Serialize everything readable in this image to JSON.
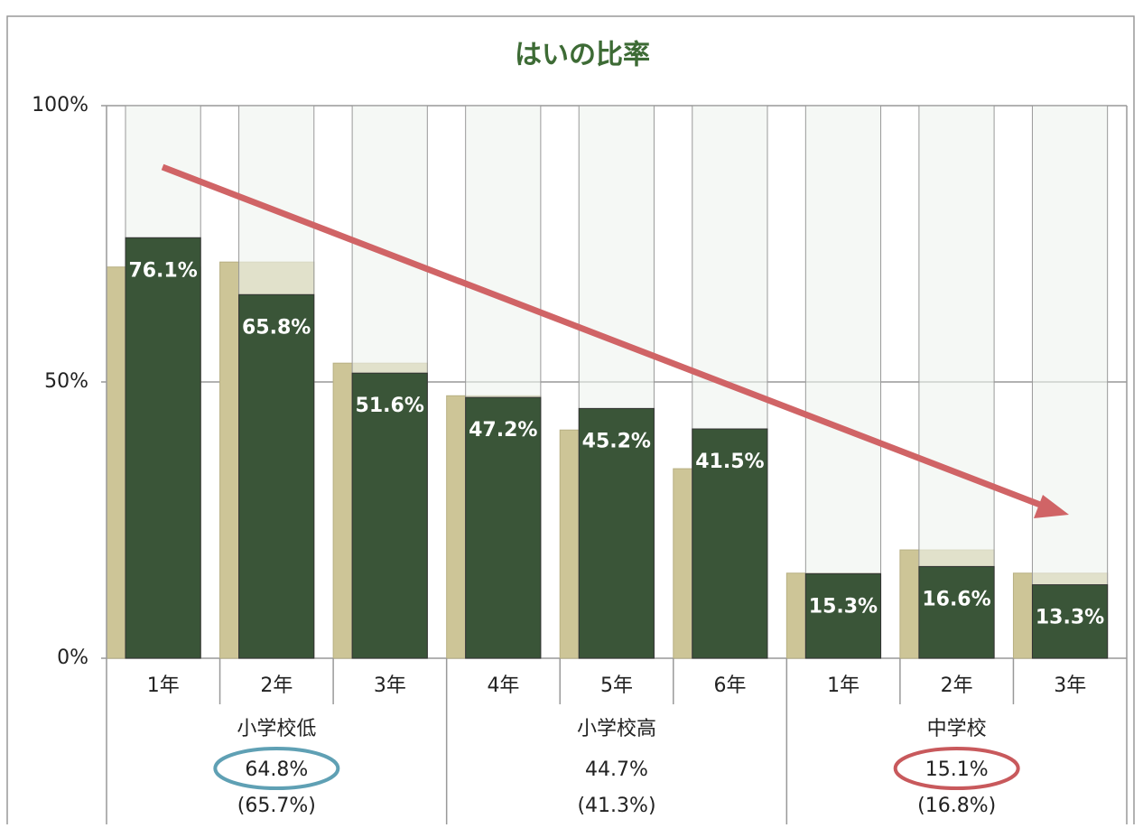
{
  "chart_data": {
    "type": "bar",
    "title": "はいの比率",
    "categories": [
      "1年",
      "2年",
      "3年",
      "4年",
      "5年",
      "6年",
      "1年",
      "2年",
      "3年"
    ],
    "series": [
      {
        "color": "#cdc597",
        "values": [
          70.8,
          71.7,
          53.4,
          47.5,
          41.3,
          34.3,
          15.4,
          19.6,
          15.4
        ]
      },
      {
        "color": "#3a5538",
        "values": [
          76.1,
          65.8,
          51.6,
          47.2,
          45.2,
          41.5,
          15.3,
          16.6,
          13.3
        ],
        "value_labels": [
          "76.1%",
          "65.8%",
          "51.6%",
          "47.2%",
          "45.2%",
          "41.5%",
          "15.3%",
          "16.6%",
          "13.3%"
        ]
      }
    ],
    "background_color": "#eef4ee",
    "groups": [
      "小学校低",
      "小学校高",
      "中学校"
    ],
    "group_values": [
      64.8,
      44.7,
      15.1
    ],
    "group_value_labels": [
      "64.8%",
      "44.7%",
      "15.1%"
    ],
    "group_prev_values": [
      65.7,
      41.3,
      16.8
    ],
    "group_prev_value_labels": [
      "(65.7%)",
      "(41.3%)",
      "(16.8%)"
    ],
    "ylim": [
      0,
      100
    ],
    "yticks": [
      {
        "value": 0,
        "label": "0%"
      },
      {
        "value": 50,
        "label": "50%"
      },
      {
        "value": 100,
        "label": "100%"
      }
    ],
    "grid": true
  }
}
